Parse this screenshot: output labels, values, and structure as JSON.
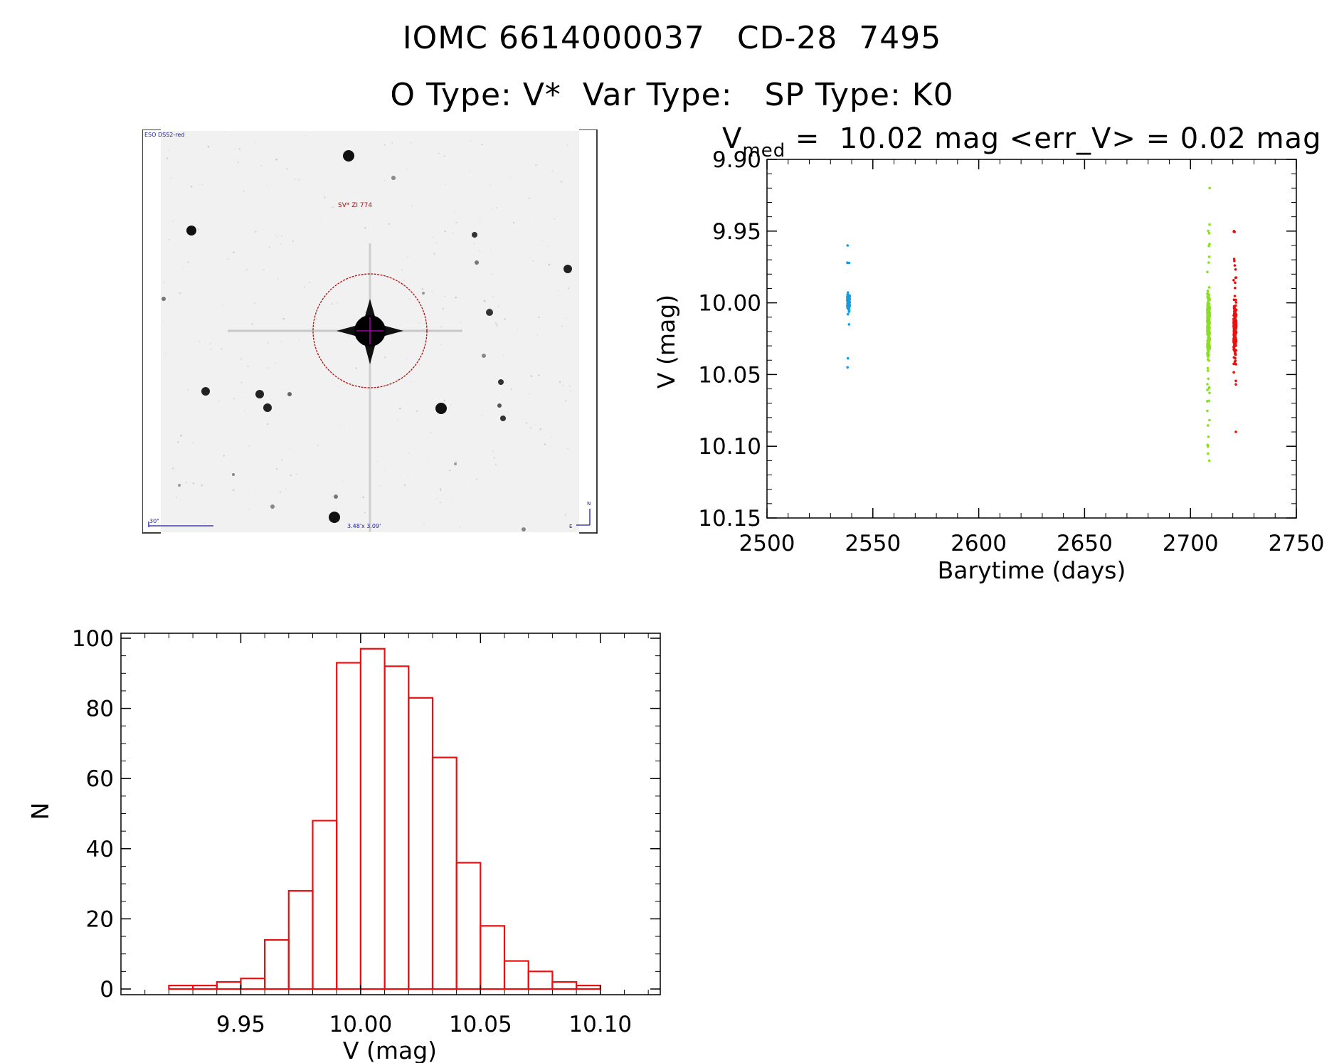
{
  "header": {
    "title_line1": "IOMC 6614000037   CD-28  7495",
    "title_line2": "O Type: V*  Var Type:   SP Type: K0"
  },
  "finder_chart": {
    "survey_label": "ESO DSS2-red",
    "object_label": "SV* ZI 774",
    "scale_label": "30\"",
    "fov_label": "3.48'x 3.09'",
    "compass_n": "N",
    "compass_e": "E",
    "colors": {
      "label": "#1a1aa0",
      "object_label": "#b01010",
      "circle": "#b01010",
      "cross": "#a000a0"
    }
  },
  "lightcurve": {
    "title_prefix": "V",
    "title_sub": "med",
    "title_rest": " =  10.02 mag <err_V> = 0.02 mag",
    "xlabel": "Barytime (days)",
    "ylabel": "V (mag)",
    "xlim": [
      2500,
      2750
    ],
    "ylim": [
      10.15,
      9.9
    ],
    "xticks": [
      "2500",
      "2550",
      "2600",
      "2650",
      "2700",
      "2750"
    ],
    "yticks": [
      "9.90",
      "9.95",
      "10.00",
      "10.05",
      "10.10",
      "10.15"
    ]
  },
  "histogram": {
    "xlabel": "V (mag)",
    "ylabel": "N",
    "xticks": [
      "9.95",
      "10.00",
      "10.05",
      "10.10"
    ],
    "yticks": [
      "0",
      "20",
      "40",
      "60",
      "80",
      "100"
    ]
  },
  "chart_data": [
    {
      "type": "scatter",
      "xlabel": "Barytime (days)",
      "ylabel": "V (mag)",
      "xlim": [
        2500,
        2750
      ],
      "ylim": [
        10.15,
        9.9
      ],
      "series": [
        {
          "color": "#1a9be0",
          "x_center": 2538.5,
          "y_range": [
            9.96,
            10.045
          ],
          "y_core": [
            9.985,
            10.015
          ]
        },
        {
          "color": "#88e020",
          "x_center": 2708.5,
          "y_range": [
            9.92,
            10.11
          ],
          "y_core": [
            9.97,
            10.06
          ]
        },
        {
          "color": "#e81010",
          "x_center": 2721,
          "y_range": [
            9.95,
            10.09
          ],
          "y_core": [
            9.98,
            10.06
          ]
        }
      ]
    },
    {
      "type": "bar",
      "xlabel": "V (mag)",
      "ylabel": "N",
      "bin_width": 0.01,
      "bin_starts": [
        9.92,
        9.93,
        9.94,
        9.95,
        9.96,
        9.97,
        9.98,
        9.99,
        10.0,
        10.01,
        10.02,
        10.03,
        10.04,
        10.05,
        10.06,
        10.07,
        10.08,
        10.09,
        10.1
      ],
      "values": [
        1,
        1,
        2,
        3,
        14,
        28,
        48,
        93,
        97,
        92,
        83,
        66,
        36,
        18,
        8,
        5,
        2,
        1,
        0
      ],
      "xlim": [
        9.9,
        10.125
      ],
      "ylim": [
        0,
        100
      ],
      "color": "#e81010"
    }
  ]
}
